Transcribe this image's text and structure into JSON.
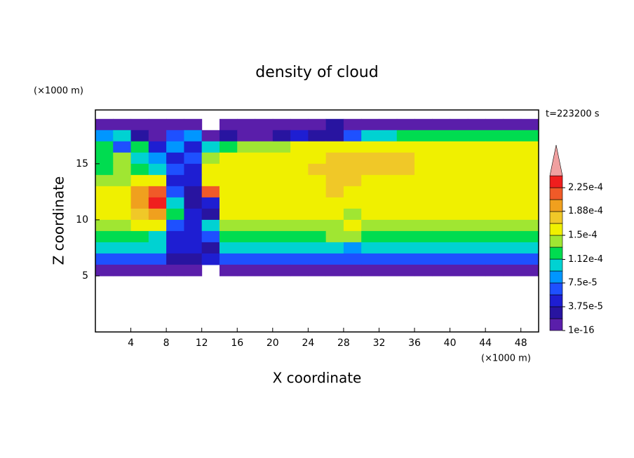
{
  "chart_data": {
    "type": "heatmap",
    "title": "density of cloud",
    "xlabel": "X coordinate",
    "ylabel": "Z coordinate",
    "x_unit": "(×1000 m)",
    "y_unit": "(×1000 m)",
    "annotation": "t=223200 s",
    "xlim": [
      0,
      50
    ],
    "ylim": [
      0,
      19.8
    ],
    "xticks": [
      4,
      8,
      12,
      16,
      20,
      24,
      28,
      32,
      36,
      40,
      44,
      48
    ],
    "yticks": [
      5,
      10,
      15
    ],
    "x": [
      1,
      3,
      5,
      7,
      9,
      11,
      13,
      15,
      17,
      19,
      21,
      23,
      25,
      27,
      29,
      31,
      33,
      35,
      37,
      39,
      41,
      43,
      45,
      47,
      49
    ],
    "y": [
      18.5,
      17.5,
      16.5,
      15.5,
      14.5,
      13.5,
      12.5,
      11.5,
      10.5,
      9.5,
      8.5,
      7.5,
      6.5,
      5.5
    ],
    "values": [
      [
        1e-05,
        1e-05,
        1e-05,
        1e-05,
        1e-05,
        1e-05,
        null,
        1e-05,
        1e-05,
        1e-05,
        1e-05,
        1e-05,
        1e-05,
        3e-05,
        1e-05,
        1e-05,
        1e-05,
        1e-05,
        1e-05,
        1e-05,
        1e-05,
        1e-05,
        1e-05,
        1e-05,
        1e-05
      ],
      [
        8e-05,
        0.00011,
        2e-05,
        1e-05,
        6e-05,
        9e-05,
        1e-05,
        3e-05,
        1e-05,
        1e-05,
        2e-05,
        4e-05,
        3e-05,
        2e-05,
        6e-05,
        0.000105,
        0.00011,
        0.000115,
        0.000115,
        0.000115,
        0.000115,
        0.000115,
        0.000115,
        0.000115,
        0.00012
      ],
      [
        0.00012,
        6e-05,
        0.000125,
        4e-05,
        9e-05,
        5e-05,
        0.0001,
        0.00013,
        0.000135,
        0.00014,
        0.000145,
        0.00015,
        0.000155,
        0.00015,
        0.00016,
        0.00016,
        0.00016,
        0.00016,
        0.00016,
        0.00016,
        0.00016,
        0.00016,
        0.00016,
        0.00016,
        0.00016
      ],
      [
        0.00013,
        0.000135,
        0.00011,
        8e-05,
        5e-05,
        7e-05,
        0.000145,
        0.000155,
        0.00016,
        0.00016,
        0.00016,
        0.00016,
        0.000165,
        0.00017,
        0.00017,
        0.000175,
        0.000175,
        0.00018,
        0.000165,
        0.000165,
        0.000165,
        0.000165,
        0.000165,
        0.000165,
        0.000165
      ],
      [
        0.00013,
        0.00014,
        0.000125,
        0.00011,
        6e-05,
        4e-05,
        0.00015,
        0.000165,
        0.000165,
        0.000165,
        0.000165,
        0.000165,
        0.00017,
        0.000185,
        0.00018,
        0.00018,
        0.000185,
        0.00018,
        0.000165,
        0.000165,
        0.000165,
        0.000165,
        0.000165,
        0.000165,
        0.000165
      ],
      [
        0.00014,
        0.000145,
        0.000155,
        0.00016,
        4e-05,
        5e-05,
        0.00016,
        0.000165,
        0.000165,
        0.000165,
        0.000165,
        0.000165,
        0.000165,
        0.00018,
        0.000175,
        0.000165,
        0.000165,
        0.000165,
        0.000165,
        0.000165,
        0.000165,
        0.000165,
        0.000165,
        0.000165,
        0.000165
      ],
      [
        0.00015,
        0.000155,
        0.00019,
        0.00021,
        6e-05,
        3e-05,
        0.00022,
        0.000165,
        0.000165,
        0.000165,
        0.000165,
        0.000165,
        0.000165,
        0.000175,
        0.000165,
        0.000165,
        0.000165,
        0.000165,
        0.000165,
        0.000165,
        0.000165,
        0.000165,
        0.000165,
        0.000165,
        0.000165
      ],
      [
        0.000155,
        0.00016,
        0.0002,
        0.000225,
        0.00011,
        3e-05,
        4e-05,
        0.000162,
        0.000162,
        0.000162,
        0.000162,
        0.000162,
        0.000162,
        0.000162,
        0.000155,
        0.000162,
        0.000162,
        0.000162,
        0.000162,
        0.000162,
        0.000162,
        0.000162,
        0.000162,
        0.000162,
        0.000162
      ],
      [
        0.00015,
        0.000155,
        0.00018,
        0.00019,
        0.00012,
        5e-05,
        3e-05,
        0.00016,
        0.00016,
        0.00016,
        0.00016,
        0.00016,
        0.00016,
        0.00016,
        0.000145,
        0.00016,
        0.00016,
        0.00016,
        0.00016,
        0.00016,
        0.00016,
        0.00016,
        0.00016,
        0.00016,
        0.00016
      ],
      [
        0.000142,
        0.000145,
        0.00015,
        0.000155,
        6e-05,
        5e-05,
        0.0001,
        0.000148,
        0.000148,
        0.000148,
        0.000148,
        0.000148,
        0.000148,
        0.000148,
        0.000152,
        0.000148,
        0.000148,
        0.000148,
        0.000148,
        0.000148,
        0.000148,
        0.000148,
        0.000148,
        0.000148,
        0.000148
      ],
      [
        0.000128,
        0.000128,
        0.000128,
        0.0001,
        5e-05,
        4e-05,
        7e-05,
        0.00013,
        0.00013,
        0.00013,
        0.00013,
        0.00013,
        0.00013,
        0.00014,
        0.00014,
        0.00013,
        0.00013,
        0.00013,
        0.00013,
        0.00013,
        0.00013,
        0.00013,
        0.00013,
        0.00013,
        0.00013
      ],
      [
        0.0001,
        0.0001,
        0.0001,
        0.0001,
        4e-05,
        5e-05,
        3e-05,
        0.000105,
        0.000105,
        0.000105,
        0.000105,
        0.000105,
        0.000105,
        0.000105,
        9e-05,
        0.000105,
        0.000105,
        0.000105,
        0.000105,
        0.000105,
        0.000105,
        0.000105,
        0.000105,
        0.000105,
        0.000105
      ],
      [
        6e-05,
        6e-05,
        6e-05,
        6e-05,
        3e-05,
        3e-05,
        4e-05,
        6.5e-05,
        6.5e-05,
        6.5e-05,
        6.5e-05,
        6.5e-05,
        6.5e-05,
        6.5e-05,
        6.5e-05,
        6.5e-05,
        6.5e-05,
        6.5e-05,
        6.5e-05,
        6.5e-05,
        6.5e-05,
        6.5e-05,
        6.5e-05,
        6.5e-05,
        6.5e-05
      ],
      [
        1e-05,
        1e-05,
        1e-05,
        1e-05,
        1e-05,
        1e-05,
        null,
        1e-05,
        1e-05,
        1e-05,
        1e-05,
        1e-05,
        1e-05,
        1e-05,
        1e-05,
        1e-05,
        1e-05,
        1e-05,
        1e-05,
        1e-05,
        1e-05,
        1e-05,
        1e-05,
        1e-05,
        1e-05
      ]
    ],
    "colorbar": {
      "levels": [
        1e-16,
        1.875e-05,
        3.75e-05,
        5.625e-05,
        7.5e-05,
        9.375e-05,
        0.0001125,
        0.00013125,
        0.00015,
        0.00016875,
        0.0001875,
        0.00020625,
        0.000225,
        0.00024375
      ],
      "colors": [
        "#5a1eaa",
        "#2814a0",
        "#1e1ed2",
        "#1e50ff",
        "#0096ff",
        "#00d2d2",
        "#00dc50",
        "#a0e632",
        "#f0f000",
        "#f0c828",
        "#f0a01e",
        "#f05a28",
        "#f01e1e"
      ],
      "over_color": "#f0a0a0",
      "ticks": [
        1e-16,
        {
          "value": 3.75e-05,
          "label": "3.75e-5"
        },
        {
          "value": 7.5e-05,
          "label": "7.5e-5"
        },
        {
          "value": 0.000112,
          "label": "1.12e-4"
        },
        {
          "value": 0.00015,
          "label": "1.5e-4"
        },
        {
          "value": 0.000188,
          "label": "1.88e-4"
        },
        {
          "value": 0.000225,
          "label": "2.25e-4"
        }
      ]
    }
  }
}
